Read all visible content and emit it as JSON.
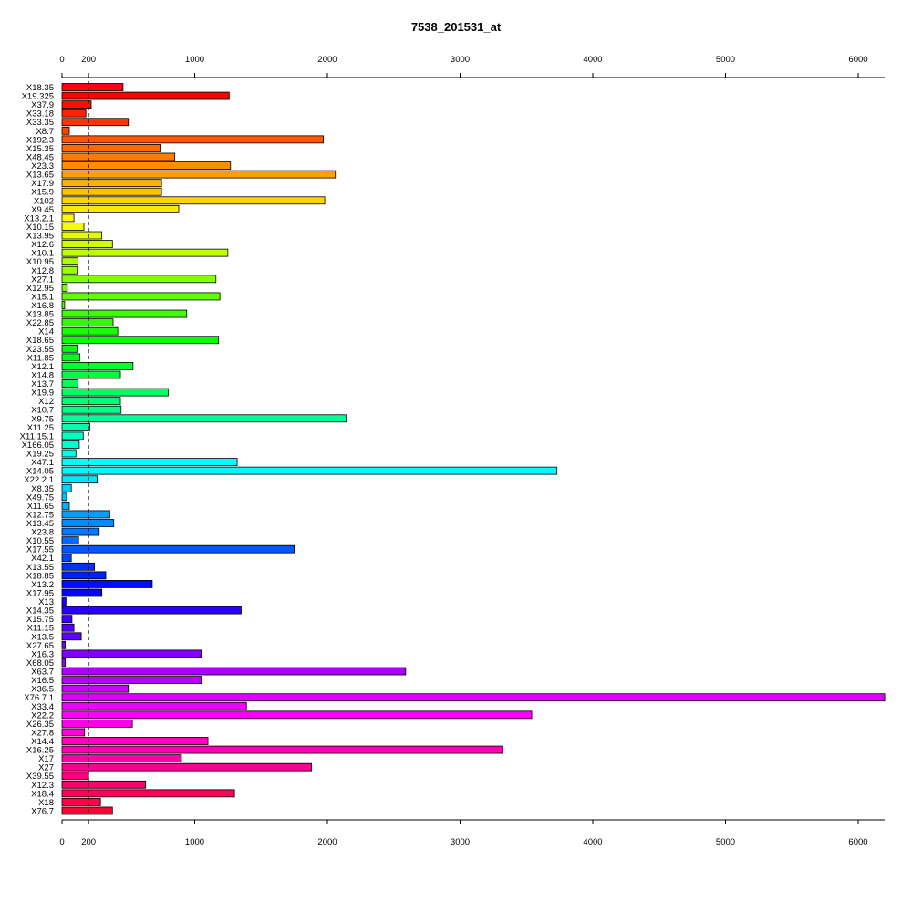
{
  "chart_data": {
    "type": "bar",
    "orientation": "horizontal",
    "title": "7538_201531_at",
    "xlabel": "",
    "ylabel": "",
    "xlim": [
      0,
      6000
    ],
    "x_ticks": [
      0,
      200,
      1000,
      2000,
      3000,
      4000,
      5000,
      6000
    ],
    "reference_line": 200,
    "axes_position": "top and bottom",
    "grid": false,
    "color_scheme": "rainbow",
    "categories": [
      "X18.35",
      "X19.325",
      "X37.9",
      "X33.18",
      "X33.35",
      "X8.7",
      "X192.3",
      "X15.35",
      "X48.45",
      "X23.3",
      "X13.65",
      "X17.9",
      "X15.9",
      "X102",
      "X9.45",
      "X13.2.1",
      "X10.15",
      "X13.95",
      "X12.6",
      "X10.1",
      "X10.95",
      "X12.8",
      "X27.1",
      "X12.95",
      "X15.1",
      "X16.8",
      "X13.85",
      "X22.85",
      "X14",
      "X18.65",
      "X23.55",
      "X11.85",
      "X12.1",
      "X14.8",
      "X13.7",
      "X19.9",
      "X12",
      "X10.7",
      "X9.75",
      "X11.25",
      "X11.15.1",
      "X166.05",
      "X19.25",
      "X47.1",
      "X14.05",
      "X22.2.1",
      "X8.35",
      "X49.75",
      "X11.65",
      "X12.75",
      "X13.45",
      "X23.8",
      "X10.55",
      "X17.55",
      "X42.1",
      "X13.55",
      "X18.85",
      "X13.2",
      "X17.95",
      "X13",
      "X14.35",
      "X15.75",
      "X11.15",
      "X13.5",
      "X27.65",
      "X16.3",
      "X68.05",
      "X63.7",
      "X16.5",
      "X36.5",
      "X76.7.1",
      "X33.4",
      "X22.2",
      "X26.35",
      "X27.8",
      "X14.4",
      "X16.25",
      "X17",
      "X27",
      "X39.55",
      "X12.3",
      "X18.4",
      "X18",
      "X76.7"
    ],
    "values": [
      460,
      1260,
      220,
      180,
      500,
      55,
      1970,
      740,
      850,
      1270,
      2060,
      750,
      750,
      1980,
      880,
      90,
      165,
      300,
      380,
      1250,
      120,
      115,
      1160,
      40,
      1190,
      20,
      940,
      385,
      420,
      1180,
      115,
      135,
      535,
      440,
      120,
      800,
      440,
      445,
      2140,
      210,
      160,
      130,
      105,
      1320,
      3730,
      265,
      70,
      35,
      55,
      360,
      390,
      280,
      125,
      1750,
      70,
      245,
      330,
      680,
      300,
      30,
      1350,
      75,
      90,
      145,
      25,
      1050,
      25,
      2590,
      1050,
      500,
      6200,
      1390,
      3540,
      530,
      170,
      1100,
      3320,
      900,
      1880,
      200,
      630,
      1300,
      290,
      380
    ]
  }
}
